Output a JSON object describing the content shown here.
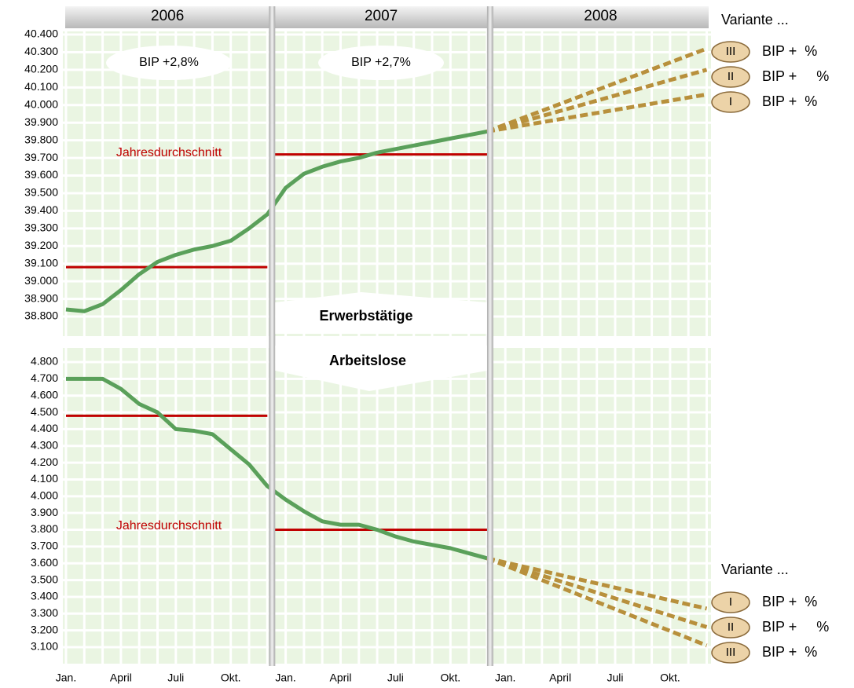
{
  "chart_data": [
    {
      "type": "line",
      "title": "Erwerbstätige",
      "years": [
        "2006",
        "2007",
        "2008"
      ],
      "annotations": [
        "BIP +2,8%",
        "BIP +2,7%"
      ],
      "ylim": [
        38800,
        40400
      ],
      "yticks": [
        {
          "value": 38800,
          "label": "38.800"
        },
        {
          "value": 38900,
          "label": "38.900"
        },
        {
          "value": 39000,
          "label": "39.000"
        },
        {
          "value": 39100,
          "label": "39.100"
        },
        {
          "value": 39200,
          "label": "39.200"
        },
        {
          "value": 39300,
          "label": "39.300"
        },
        {
          "value": 39400,
          "label": "39.400"
        },
        {
          "value": 39500,
          "label": "39.500"
        },
        {
          "value": 39600,
          "label": "39.600"
        },
        {
          "value": 39700,
          "label": "39.700"
        },
        {
          "value": 39800,
          "label": "39.800"
        },
        {
          "value": 39900,
          "label": "39.900"
        },
        {
          "value": 40000,
          "label": "40.000"
        },
        {
          "value": 40100,
          "label": "40.100"
        },
        {
          "value": 40200,
          "label": "40.200"
        },
        {
          "value": 40300,
          "label": "40.300"
        },
        {
          "value": 40400,
          "label": "40.400"
        }
      ],
      "annual_average": {
        "label": "Jahresdurchschnitt",
        "color": "#c00000",
        "values": [
          39080,
          39720
        ]
      },
      "legend_title": "Variante ...",
      "main": {
        "color": "#5aa05a",
        "values": [
          38840,
          38830,
          38870,
          38950,
          39040,
          39110,
          39150,
          39180,
          39200,
          39230,
          39300,
          39380,
          39530,
          39610,
          39650,
          39680,
          39700,
          39730,
          39750,
          39770,
          39790,
          39810,
          39830,
          39850,
          null,
          null,
          null,
          null,
          null,
          null,
          null,
          null,
          null,
          null,
          null,
          null
        ]
      },
      "series": [
        {
          "name": "III",
          "text": "BIP +  %",
          "color": "#b8903c",
          "values": [
            null,
            null,
            null,
            null,
            null,
            null,
            null,
            null,
            null,
            null,
            null,
            null,
            null,
            null,
            null,
            null,
            null,
            null,
            null,
            null,
            null,
            null,
            null,
            39850,
            null,
            null,
            null,
            null,
            null,
            null,
            null,
            null,
            null,
            null,
            null,
            40320
          ]
        },
        {
          "name": "II",
          "text": "BIP +     %",
          "color": "#b8903c",
          "values": [
            null,
            null,
            null,
            null,
            null,
            null,
            null,
            null,
            null,
            null,
            null,
            null,
            null,
            null,
            null,
            null,
            null,
            null,
            null,
            null,
            null,
            null,
            null,
            39850,
            null,
            null,
            null,
            null,
            null,
            null,
            null,
            null,
            null,
            null,
            null,
            40200
          ]
        },
        {
          "name": "I",
          "text": "BIP +  %",
          "color": "#b8903c",
          "values": [
            null,
            null,
            null,
            null,
            null,
            null,
            null,
            null,
            null,
            null,
            null,
            null,
            null,
            null,
            null,
            null,
            null,
            null,
            null,
            null,
            null,
            null,
            null,
            39850,
            null,
            null,
            null,
            null,
            null,
            null,
            null,
            null,
            null,
            null,
            null,
            40060
          ]
        }
      ]
    },
    {
      "type": "line",
      "title": "Arbeitslose",
      "categories": [
        "Jan.",
        null,
        null,
        "April",
        null,
        null,
        "Juli",
        null,
        null,
        "Okt.",
        null,
        null,
        "Jan.",
        null,
        null,
        "April",
        null,
        null,
        "Juli",
        null,
        null,
        "Okt.",
        null,
        null,
        "Jan.",
        null,
        null,
        "April",
        null,
        null,
        "Juli",
        null,
        null,
        "Okt.",
        null,
        null
      ],
      "ylim": [
        3100,
        4800
      ],
      "yticks": [
        {
          "value": 3100,
          "label": "3.100"
        },
        {
          "value": 3200,
          "label": "3.200"
        },
        {
          "value": 3300,
          "label": "3.300"
        },
        {
          "value": 3400,
          "label": "3.400"
        },
        {
          "value": 3500,
          "label": "3.500"
        },
        {
          "value": 3600,
          "label": "3.600"
        },
        {
          "value": 3700,
          "label": "3.700"
        },
        {
          "value": 3800,
          "label": "3.800"
        },
        {
          "value": 3900,
          "label": "3.900"
        },
        {
          "value": 4000,
          "label": "4.000"
        },
        {
          "value": 4100,
          "label": "4.100"
        },
        {
          "value": 4200,
          "label": "4.200"
        },
        {
          "value": 4300,
          "label": "4.300"
        },
        {
          "value": 4400,
          "label": "4.400"
        },
        {
          "value": 4500,
          "label": "4.500"
        },
        {
          "value": 4600,
          "label": "4.600"
        },
        {
          "value": 4700,
          "label": "4.700"
        },
        {
          "value": 4800,
          "label": "4.800"
        }
      ],
      "annual_average": {
        "label": "Jahresdurchschnitt",
        "color": "#c00000",
        "values": [
          4480,
          3800
        ]
      },
      "legend_title": "Variante ...",
      "main": {
        "color": "#5aa05a",
        "values": [
          4700,
          4700,
          4700,
          4640,
          4550,
          4500,
          4400,
          4390,
          4370,
          4280,
          4190,
          4060,
          3980,
          3910,
          3850,
          3830,
          3830,
          3800,
          3760,
          3730,
          3710,
          3690,
          3660,
          3630,
          null,
          null,
          null,
          null,
          null,
          null,
          null,
          null,
          null,
          null,
          null,
          null
        ]
      },
      "series": [
        {
          "name": "I",
          "text": "BIP +  %",
          "color": "#b8903c",
          "values": [
            null,
            null,
            null,
            null,
            null,
            null,
            null,
            null,
            null,
            null,
            null,
            null,
            null,
            null,
            null,
            null,
            null,
            null,
            null,
            null,
            null,
            null,
            null,
            3630,
            null,
            null,
            null,
            null,
            null,
            null,
            null,
            null,
            null,
            null,
            null,
            3330
          ]
        },
        {
          "name": "II",
          "text": "BIP +     %",
          "color": "#b8903c",
          "values": [
            null,
            null,
            null,
            null,
            null,
            null,
            null,
            null,
            null,
            null,
            null,
            null,
            null,
            null,
            null,
            null,
            null,
            null,
            null,
            null,
            null,
            null,
            null,
            3630,
            null,
            null,
            null,
            null,
            null,
            null,
            null,
            null,
            null,
            null,
            null,
            3220
          ]
        },
        {
          "name": "III",
          "text": "BIP +  %",
          "color": "#b8903c",
          "values": [
            null,
            null,
            null,
            null,
            null,
            null,
            null,
            null,
            null,
            null,
            null,
            null,
            null,
            null,
            null,
            null,
            null,
            null,
            null,
            null,
            null,
            null,
            null,
            3630,
            null,
            null,
            null,
            null,
            null,
            null,
            null,
            null,
            null,
            null,
            null,
            3110
          ]
        }
      ]
    }
  ]
}
